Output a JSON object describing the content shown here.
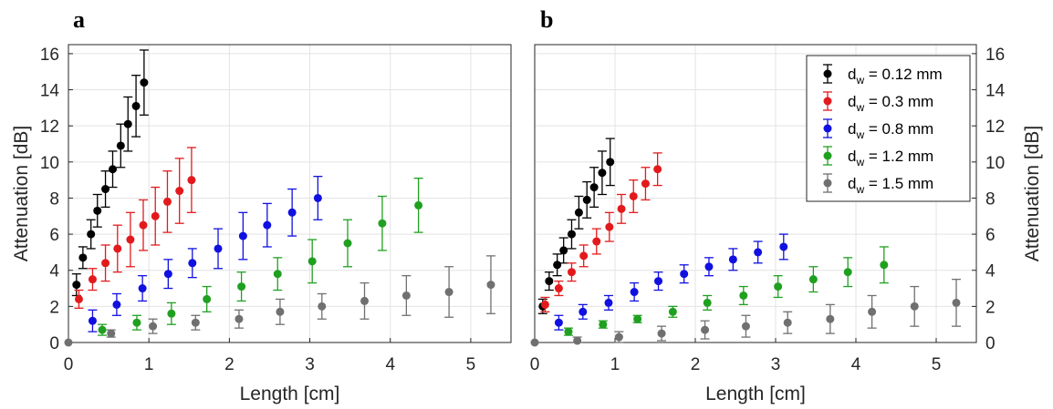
{
  "chart_data": {
    "type": "scatter",
    "error_bars": true,
    "ylim": [
      0,
      16.5
    ],
    "xlim": [
      0,
      5.5
    ],
    "xticks": [
      0,
      1,
      2,
      3,
      4,
      5
    ],
    "yticks": [
      0,
      2,
      4,
      6,
      8,
      10,
      12,
      14,
      16
    ],
    "grid": true,
    "xlabel": "Length [cm]",
    "ylabel": "Attenuation [dB]",
    "legend": {
      "location": "top-right",
      "panel": "b",
      "entries": [
        {
          "prefix": "d",
          "sub": "w",
          "suffix": " = 0.12 mm"
        },
        {
          "prefix": "d",
          "sub": "w",
          "suffix": " = 0.3 mm"
        },
        {
          "prefix": "d",
          "sub": "w",
          "suffix": " = 0.8 mm"
        },
        {
          "prefix": "d",
          "sub": "w",
          "suffix": " = 1.2 mm"
        },
        {
          "prefix": "d",
          "sub": "w",
          "suffix": " = 1.5 mm"
        }
      ]
    },
    "colors": [
      "#000000",
      "#e31a1c",
      "#1010e0",
      "#20a020",
      "#707070"
    ],
    "panels": [
      {
        "label": "a",
        "y_axis_side": "left",
        "series": [
          {
            "points": [
              [
                0.1,
                3.2,
                0.6
              ],
              [
                0.18,
                4.7,
                0.6
              ],
              [
                0.28,
                6.0,
                0.8
              ],
              [
                0.36,
                7.3,
                0.9
              ],
              [
                0.46,
                8.5,
                1.0
              ],
              [
                0.55,
                9.6,
                1.0
              ],
              [
                0.65,
                10.9,
                1.2
              ],
              [
                0.74,
                12.1,
                1.5
              ],
              [
                0.84,
                13.1,
                1.7
              ],
              [
                0.94,
                14.4,
                1.8
              ]
            ]
          },
          {
            "points": [
              [
                0.13,
                2.4,
                0.5
              ],
              [
                0.3,
                3.5,
                0.6
              ],
              [
                0.46,
                4.4,
                1.0
              ],
              [
                0.61,
                5.2,
                1.3
              ],
              [
                0.77,
                5.7,
                1.5
              ],
              [
                0.93,
                6.5,
                1.4
              ],
              [
                1.08,
                7.0,
                1.6
              ],
              [
                1.23,
                7.8,
                1.7
              ],
              [
                1.38,
                8.4,
                1.8
              ],
              [
                1.53,
                9.0,
                1.8
              ]
            ]
          },
          {
            "points": [
              [
                0.3,
                1.2,
                0.6
              ],
              [
                0.6,
                2.1,
                0.6
              ],
              [
                0.92,
                3.0,
                0.7
              ],
              [
                1.24,
                3.8,
                0.8
              ],
              [
                1.54,
                4.4,
                0.8
              ],
              [
                1.86,
                5.2,
                1.1
              ],
              [
                2.17,
                5.9,
                1.3
              ],
              [
                2.47,
                6.5,
                1.2
              ],
              [
                2.78,
                7.2,
                1.3
              ],
              [
                3.1,
                8.0,
                1.2
              ]
            ]
          },
          {
            "points": [
              [
                0.42,
                0.7,
                0.3
              ],
              [
                0.85,
                1.1,
                0.4
              ],
              [
                1.28,
                1.6,
                0.6
              ],
              [
                1.72,
                2.4,
                0.7
              ],
              [
                2.15,
                3.1,
                0.8
              ],
              [
                2.6,
                3.8,
                0.9
              ],
              [
                3.03,
                4.5,
                1.2
              ],
              [
                3.47,
                5.5,
                1.3
              ],
              [
                3.9,
                6.6,
                1.5
              ],
              [
                4.35,
                7.6,
                1.5
              ]
            ]
          },
          {
            "points": [
              [
                0.0,
                0.0,
                0.0
              ],
              [
                0.53,
                0.5,
                0.2
              ],
              [
                1.05,
                0.9,
                0.4
              ],
              [
                1.58,
                1.1,
                0.4
              ],
              [
                2.12,
                1.3,
                0.5
              ],
              [
                2.63,
                1.7,
                0.7
              ],
              [
                3.15,
                2.0,
                0.7
              ],
              [
                3.68,
                2.3,
                1.0
              ],
              [
                4.2,
                2.6,
                1.1
              ],
              [
                4.73,
                2.8,
                1.4
              ],
              [
                5.25,
                3.2,
                1.6
              ]
            ]
          }
        ]
      },
      {
        "label": "b",
        "y_axis_side": "right",
        "series": [
          {
            "points": [
              [
                0.1,
                2.0,
                0.4
              ],
              [
                0.18,
                3.4,
                0.5
              ],
              [
                0.28,
                4.3,
                0.6
              ],
              [
                0.36,
                5.1,
                0.7
              ],
              [
                0.46,
                6.0,
                0.8
              ],
              [
                0.55,
                7.2,
                0.9
              ],
              [
                0.65,
                7.9,
                1.0
              ],
              [
                0.74,
                8.6,
                1.1
              ],
              [
                0.84,
                9.4,
                1.2
              ],
              [
                0.94,
                10.0,
                1.3
              ]
            ]
          },
          {
            "points": [
              [
                0.13,
                2.1,
                0.4
              ],
              [
                0.3,
                3.0,
                0.4
              ],
              [
                0.46,
                3.9,
                0.5
              ],
              [
                0.61,
                4.8,
                0.6
              ],
              [
                0.77,
                5.6,
                0.7
              ],
              [
                0.93,
                6.4,
                0.8
              ],
              [
                1.08,
                7.4,
                0.8
              ],
              [
                1.23,
                8.1,
                0.9
              ],
              [
                1.38,
                8.8,
                0.9
              ],
              [
                1.53,
                9.6,
                0.9
              ]
            ]
          },
          {
            "points": [
              [
                0.3,
                1.1,
                0.4
              ],
              [
                0.6,
                1.7,
                0.4
              ],
              [
                0.92,
                2.2,
                0.4
              ],
              [
                1.24,
                2.8,
                0.5
              ],
              [
                1.54,
                3.4,
                0.5
              ],
              [
                1.86,
                3.8,
                0.5
              ],
              [
                2.17,
                4.2,
                0.5
              ],
              [
                2.47,
                4.6,
                0.6
              ],
              [
                2.78,
                5.0,
                0.6
              ],
              [
                3.1,
                5.3,
                0.7
              ]
            ]
          },
          {
            "points": [
              [
                0.42,
                0.6,
                0.2
              ],
              [
                0.85,
                1.0,
                0.2
              ],
              [
                1.28,
                1.3,
                0.2
              ],
              [
                1.72,
                1.7,
                0.3
              ],
              [
                2.15,
                2.2,
                0.4
              ],
              [
                2.6,
                2.6,
                0.5
              ],
              [
                3.03,
                3.1,
                0.6
              ],
              [
                3.47,
                3.5,
                0.7
              ],
              [
                3.9,
                3.9,
                0.8
              ],
              [
                4.35,
                4.3,
                1.0
              ]
            ]
          },
          {
            "points": [
              [
                0.0,
                0.0,
                0.0
              ],
              [
                0.53,
                0.1,
                0.2
              ],
              [
                1.05,
                0.3,
                0.3
              ],
              [
                1.58,
                0.5,
                0.4
              ],
              [
                2.12,
                0.7,
                0.5
              ],
              [
                2.63,
                0.9,
                0.6
              ],
              [
                3.15,
                1.1,
                0.6
              ],
              [
                3.68,
                1.3,
                0.8
              ],
              [
                4.2,
                1.7,
                0.9
              ],
              [
                4.73,
                2.0,
                1.1
              ],
              [
                5.25,
                2.2,
                1.3
              ]
            ]
          }
        ]
      }
    ]
  }
}
